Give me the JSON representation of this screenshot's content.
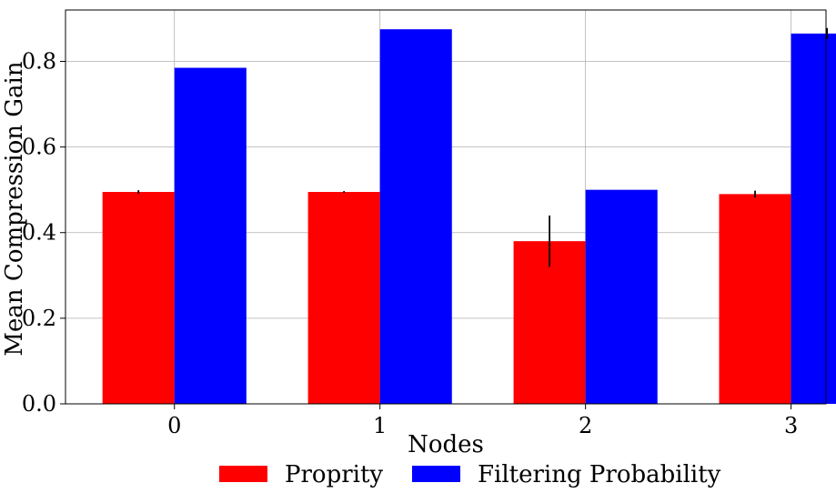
{
  "chart_data": {
    "type": "bar",
    "title": "",
    "xlabel": "Nodes",
    "ylabel": "Mean Compression Gain",
    "categories": [
      "0",
      "1",
      "2",
      "3"
    ],
    "ylim": [
      0,
      0.92
    ],
    "yticks": [
      "0.0",
      "0.2",
      "0.4",
      "0.6",
      "0.8"
    ],
    "grid": true,
    "legend_position": "bottom-center",
    "series": [
      {
        "name": "Proprity",
        "color": "#ff0000",
        "values": [
          0.495,
          0.495,
          0.38,
          0.49
        ],
        "errors": [
          0.004,
          0.002,
          0.06,
          0.008
        ]
      },
      {
        "name": "Filtering Probability",
        "color": "#0000ff",
        "values": [
          0.785,
          0.875,
          0.5,
          0.865
        ],
        "errors": [
          0,
          0,
          0,
          0.013
        ]
      }
    ]
  }
}
